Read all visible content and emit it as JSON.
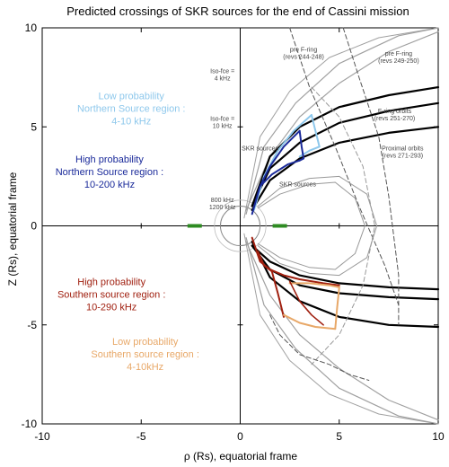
{
  "chart_data": {
    "type": "line",
    "title": "Predicted crossings of SKR sources for the end of Cassini mission",
    "xlabel": "ρ (Rs), equatorial frame",
    "ylabel": "Z (Rs), equatorial frame",
    "xlim": [
      -10,
      10
    ],
    "ylim": [
      -10,
      10
    ],
    "xticks": [
      -10,
      -5,
      0,
      5,
      10
    ],
    "yticks": [
      -10,
      -5,
      0,
      5,
      10
    ],
    "grid": false,
    "regions": [
      {
        "lines": [
          "Low probability",
          "Northern Source region :",
          "4-10 kHz"
        ],
        "color": "#8ec8ec"
      },
      {
        "lines": [
          "High probability",
          "Northern Source region :",
          "10-200 kHz"
        ],
        "color": "#1a2a9a"
      },
      {
        "lines": [
          "High probability",
          "Southern source region :",
          "10-290 kHz"
        ],
        "color": "#a02010"
      },
      {
        "lines": [
          "Low probability",
          "Southern source region :",
          "4-10kHz"
        ],
        "color": "#e8a868"
      }
    ],
    "annotations": [
      {
        "lines": [
          "pre F-ring",
          "(revs 244-248)"
        ],
        "x": 3.2,
        "y": 8.8
      },
      {
        "lines": [
          "pre F-ring",
          "(revs 249-250)"
        ],
        "x": 8.0,
        "y": 8.6
      },
      {
        "lines": [
          "F-ring orbits",
          "(revs 251-270)"
        ],
        "x": 7.8,
        "y": 5.7
      },
      {
        "lines": [
          "Proximal orbits",
          "(revs 271-293)"
        ],
        "x": 8.2,
        "y": 3.8
      },
      {
        "lines": [
          "Iso-fce =",
          "4 kHz"
        ],
        "x": -0.9,
        "y": 7.7
      },
      {
        "lines": [
          "Iso-fce =",
          "10 kHz"
        ],
        "x": -0.9,
        "y": 5.3
      },
      {
        "lines": [
          "800 kHz",
          "1200 kHz"
        ],
        "x": -0.9,
        "y": 1.2
      },
      {
        "lines": [
          "SKR sources"
        ],
        "x": 2.9,
        "y": 2.0
      },
      {
        "lines": [
          "SKR sources"
        ],
        "x": 1.0,
        "y": 3.8
      }
    ],
    "series": [
      {
        "x": [
          0.3,
          1.5,
          3.0,
          5.0,
          7.5,
          10.0
        ],
        "y": [
          0.8,
          3.5,
          5.5,
          7.2,
          8.8,
          9.8
        ],
        "color": "#a0a0a0",
        "width": 1.2,
        "dash": false
      },
      {
        "x": [
          0.3,
          1.2,
          2.8,
          5.0,
          8.0,
          10.0
        ],
        "y": [
          0.6,
          4.0,
          6.2,
          8.2,
          9.6,
          10.0
        ],
        "color": "#a0a0a0",
        "width": 1.2,
        "dash": false
      },
      {
        "x": [
          0.2,
          1.0,
          2.5,
          4.5,
          7.0,
          10.0
        ],
        "y": [
          0.4,
          4.5,
          6.8,
          8.5,
          9.5,
          10.0
        ],
        "color": "#a0a0a0",
        "width": 1.0,
        "dash": false
      },
      {
        "x": [
          0.3,
          1.5,
          3.0,
          5.0,
          7.5,
          10.0
        ],
        "y": [
          -0.8,
          -3.5,
          -5.5,
          -7.2,
          -8.8,
          -9.8
        ],
        "color": "#a0a0a0",
        "width": 1.2,
        "dash": false
      },
      {
        "x": [
          0.3,
          1.2,
          2.8,
          5.0,
          8.0,
          10.0
        ],
        "y": [
          -0.6,
          -4.0,
          -6.2,
          -8.2,
          -9.6,
          -10.0
        ],
        "color": "#a0a0a0",
        "width": 1.2,
        "dash": false
      },
      {
        "x": [
          0.2,
          1.0,
          2.5,
          4.5,
          7.0,
          10.0
        ],
        "y": [
          -0.4,
          -4.5,
          -6.8,
          -8.5,
          -9.5,
          -10.0
        ],
        "color": "#a0a0a0",
        "width": 1.0,
        "dash": false
      },
      {
        "x": [
          0.6,
          1.5,
          3.0,
          5.0,
          7.5,
          10.0
        ],
        "y": [
          1.0,
          3.5,
          5.0,
          6.0,
          6.6,
          7.0
        ],
        "color": "#000000",
        "width": 2.2,
        "dash": false
      },
      {
        "x": [
          0.6,
          1.5,
          3.0,
          5.0,
          7.5,
          10.0
        ],
        "y": [
          1.0,
          2.9,
          4.2,
          5.2,
          5.8,
          6.2
        ],
        "color": "#000000",
        "width": 2.2,
        "dash": false
      },
      {
        "x": [
          0.6,
          1.5,
          3.0,
          5.0,
          7.5,
          10.0
        ],
        "y": [
          0.8,
          2.3,
          3.4,
          4.2,
          4.7,
          5.0
        ],
        "color": "#000000",
        "width": 2.2,
        "dash": false
      },
      {
        "x": [
          0.6,
          1.5,
          3.0,
          5.0,
          7.5,
          10.0
        ],
        "y": [
          -1.0,
          -1.8,
          -2.5,
          -2.9,
          -3.1,
          -3.2
        ],
        "color": "#000000",
        "width": 2.2,
        "dash": false
      },
      {
        "x": [
          0.6,
          1.5,
          3.0,
          5.0,
          7.5,
          10.0
        ],
        "y": [
          -1.0,
          -2.2,
          -3.0,
          -3.4,
          -3.6,
          -3.7
        ],
        "color": "#000000",
        "width": 2.2,
        "dash": false
      },
      {
        "x": [
          0.6,
          1.5,
          3.0,
          5.0,
          7.5,
          10.0
        ],
        "y": [
          -0.8,
          -2.6,
          -3.8,
          -4.6,
          -5.0,
          -5.1
        ],
        "color": "#000000",
        "width": 2.2,
        "dash": false
      },
      {
        "x": [
          2.5,
          3.5,
          4.8,
          6.0,
          7.3,
          8.0
        ],
        "y": [
          10.0,
          7.0,
          4.0,
          1.0,
          -2.0,
          -4.0
        ],
        "color": "#555555",
        "width": 1.0,
        "dash": true
      },
      {
        "x": [
          5.2,
          6.0,
          7.0,
          7.5,
          8.0,
          8.0
        ],
        "y": [
          10.0,
          7.5,
          4.5,
          1.5,
          -2.5,
          -5.0
        ],
        "color": "#555555",
        "width": 1.0,
        "dash": true
      },
      {
        "x": [
          3.6,
          5.0,
          6.2,
          6.8,
          6.2,
          5.0,
          3.6
        ],
        "y": [
          7.0,
          5.5,
          3.0,
          0.0,
          -3.0,
          -5.5,
          -7.0
        ],
        "color": "#999999",
        "width": 1.0,
        "dash": true
      },
      {
        "x": [
          1.5,
          2.0,
          3.0,
          4.5,
          5.5,
          6.5
        ],
        "y": [
          -4.5,
          -5.5,
          -6.5,
          -7.0,
          -7.5,
          -7.8
        ],
        "color": "#555555",
        "width": 1.0,
        "dash": true
      },
      {
        "x": [
          0.9,
          2.0,
          3.5,
          5.0,
          6.4,
          6.9,
          6.4,
          5.0,
          3.5,
          2.0,
          0.9
        ],
        "y": [
          1.0,
          1.9,
          2.4,
          2.5,
          1.6,
          0.0,
          -1.6,
          -2.5,
          -2.4,
          -1.9,
          -1.0
        ],
        "color": "#999999",
        "width": 1.0,
        "dash": false
      },
      {
        "x": [
          0.9,
          2.0,
          3.5,
          4.8,
          5.8,
          6.3,
          5.8,
          4.8,
          3.5,
          2.0,
          0.9
        ],
        "y": [
          0.9,
          1.6,
          2.1,
          2.2,
          1.4,
          0.0,
          -1.4,
          -2.2,
          -2.1,
          -1.6,
          -0.9
        ],
        "color": "#999999",
        "width": 1.0,
        "dash": false
      },
      {
        "x": [
          0.7,
          1.2,
          1.9,
          2.7,
          3.6
        ],
        "y": [
          0.8,
          2.5,
          3.8,
          4.8,
          5.6
        ],
        "color": "#8ec8ec",
        "width": 2.0,
        "dash": false
      },
      {
        "x": [
          3.6,
          3.8,
          4.0
        ],
        "y": [
          5.6,
          4.8,
          4.0
        ],
        "color": "#8ec8ec",
        "width": 2.0,
        "dash": false
      },
      {
        "x": [
          3.0,
          3.5,
          4.0
        ],
        "y": [
          3.5,
          3.8,
          4.0
        ],
        "color": "#8ec8ec",
        "width": 2.0,
        "dash": false
      },
      {
        "x": [
          0.6,
          1.0,
          1.5,
          2.2,
          3.0
        ],
        "y": [
          0.6,
          2.0,
          3.0,
          4.0,
          4.8
        ],
        "color": "#1a2a9a",
        "width": 2.0,
        "dash": false
      },
      {
        "x": [
          3.0,
          3.1,
          3.2,
          3.0
        ],
        "y": [
          4.8,
          4.0,
          3.4,
          3.3
        ],
        "color": "#1a2a9a",
        "width": 2.0,
        "dash": false
      },
      {
        "x": [
          1.0,
          1.6,
          2.4,
          3.0
        ],
        "y": [
          2.0,
          2.6,
          3.1,
          3.3
        ],
        "color": "#1a2a9a",
        "width": 2.0,
        "dash": false
      },
      {
        "x": [
          0.6,
          1.0,
          1.5,
          2.2,
          3.0,
          4.2,
          5.0
        ],
        "y": [
          -0.6,
          -1.8,
          -2.2,
          -2.5,
          -2.7,
          -2.9,
          -3.0
        ],
        "color": "#a02010",
        "width": 2.0,
        "dash": false
      },
      {
        "x": [
          1.6,
          1.9,
          2.2
        ],
        "y": [
          -2.3,
          -3.4,
          -4.6
        ],
        "color": "#a02010",
        "width": 2.0,
        "dash": false
      },
      {
        "x": [
          0.9,
          1.2,
          1.6
        ],
        "y": [
          -1.3,
          -2.0,
          -2.3
        ],
        "color": "#a02010",
        "width": 2.0,
        "dash": false
      },
      {
        "x": [
          2.2,
          3.0,
          3.8,
          4.8
        ],
        "y": [
          -4.5,
          -4.9,
          -5.1,
          -5.2
        ],
        "color": "#e8a868",
        "width": 2.0,
        "dash": false
      },
      {
        "x": [
          2.5,
          3.5,
          4.5,
          5.0
        ],
        "y": [
          -2.9,
          -2.9,
          -3.0,
          -3.1
        ],
        "color": "#e8a868",
        "width": 2.0,
        "dash": false
      },
      {
        "x": [
          4.8,
          4.9,
          5.0
        ],
        "y": [
          -5.2,
          -4.1,
          -3.1
        ],
        "color": "#e8a868",
        "width": 2.0,
        "dash": false
      },
      {
        "x": [
          2.5,
          3.0,
          3.6,
          4.2
        ],
        "y": [
          -2.8,
          -3.8,
          -4.5,
          -5.0
        ],
        "color": "#a02010",
        "width": 1.6,
        "dash": false
      }
    ],
    "circles": [
      {
        "cx": 0.0,
        "cy": 0.0,
        "r": 1.0,
        "color": "#888888",
        "width": 1.0
      },
      {
        "cx": 0.0,
        "cy": 0.0,
        "r": 1.3,
        "color": "#bbbbbb",
        "width": 0.8
      }
    ],
    "markers": [
      {
        "x": -2.3,
        "y": 0.0,
        "color": "#2e8b22"
      },
      {
        "x": 2.0,
        "y": 0.0,
        "color": "#2e8b22"
      }
    ]
  }
}
